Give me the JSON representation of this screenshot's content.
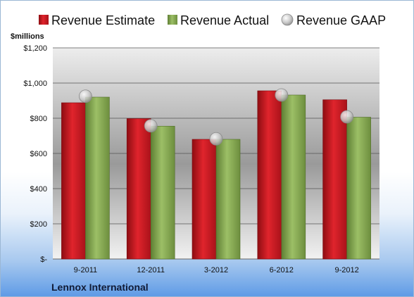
{
  "colors": {
    "estimate": "#c0141b",
    "actual": "#8aac55",
    "gaap": "#c8c8c8"
  },
  "chart_data": {
    "type": "bar",
    "company": "Lennox International",
    "ylabel": "$millions",
    "ylim": [
      0,
      1200
    ],
    "y_ticks": [
      0,
      200,
      400,
      600,
      800,
      1000,
      1200
    ],
    "y_tick_labels": [
      "$-",
      "$200",
      "$400",
      "$600",
      "$800",
      "$1,000",
      "$1,200"
    ],
    "categories": [
      "9-2011",
      "12-2011",
      "3-2012",
      "6-2012",
      "9-2012"
    ],
    "series": [
      {
        "name": "Revenue Estimate",
        "kind": "bar",
        "values": [
          888,
          798,
          680,
          956,
          905
        ]
      },
      {
        "name": "Revenue Actual",
        "kind": "bar",
        "values": [
          920,
          755,
          680,
          932,
          806
        ]
      },
      {
        "name": "Revenue GAAP",
        "kind": "marker",
        "values": [
          925,
          757,
          683,
          932,
          808
        ]
      }
    ],
    "grid": true,
    "legend_position": "top"
  }
}
